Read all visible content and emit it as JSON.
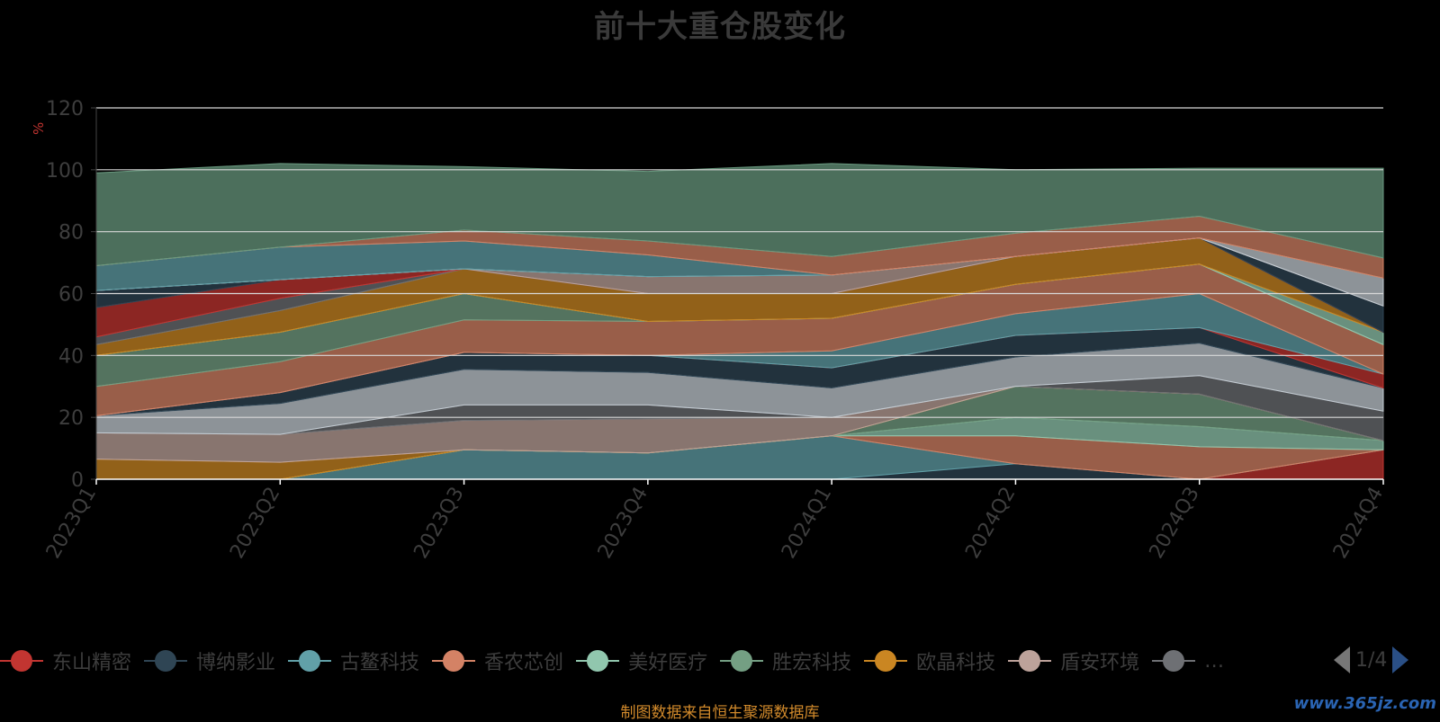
{
  "chart_data": {
    "type": "area",
    "stacked": true,
    "title": "前十大重仓股变化",
    "ylabel": "%",
    "ylim": [
      0,
      120
    ],
    "yticks": [
      0,
      20,
      40,
      60,
      80,
      100,
      120
    ],
    "grid": true,
    "legend_position": "bottom",
    "x": [
      "2023Q1",
      "2023Q2",
      "2023Q3",
      "2023Q4",
      "2024Q1",
      "2024Q2",
      "2024Q3",
      "2024Q4"
    ],
    "series": [
      {
        "color": "#c23531",
        "values": [
          0,
          0,
          0,
          0,
          0,
          0,
          0,
          9.5
        ]
      },
      {
        "color": "#2f4554",
        "values": [
          0,
          0,
          0,
          0,
          0,
          5,
          0,
          0
        ]
      },
      {
        "color": "#61a0a8",
        "values": [
          0,
          0,
          9.5,
          8.5,
          14,
          0,
          0,
          0
        ]
      },
      {
        "color": "#d48265",
        "values": [
          0,
          0,
          0,
          0,
          0,
          9,
          10.5,
          0
        ]
      },
      {
        "color": "#91c7ae",
        "values": [
          0,
          0,
          0,
          0,
          0,
          6,
          6.5,
          3
        ]
      },
      {
        "color": "#749f83",
        "values": [
          0,
          0,
          0,
          0,
          0,
          10,
          10.5,
          0
        ]
      },
      {
        "color": "#ca8622",
        "values": [
          6.5,
          5.5,
          0,
          0,
          0,
          0,
          0,
          0
        ]
      },
      {
        "color": "#bda29a",
        "values": [
          8.5,
          9,
          9.5,
          11,
          6,
          0,
          0,
          0
        ]
      },
      {
        "color": "#6e7074",
        "values": [
          0,
          0,
          5,
          4.5,
          0,
          0,
          6,
          9.5
        ]
      },
      {
        "color": "#c4ccd3",
        "values": [
          5.5,
          10,
          11.5,
          10.5,
          9.5,
          9.5,
          10.5,
          7.5
        ]
      },
      {
        "color": "#2f4554",
        "values": [
          0,
          3.5,
          5.5,
          5.5,
          6.5,
          7,
          5,
          0
        ]
      },
      {
        "color": "#c23531",
        "values": [
          0,
          0,
          0,
          0,
          0,
          0,
          0,
          4.5
        ]
      },
      {
        "color": "#61a0a8",
        "values": [
          0,
          0,
          0,
          0,
          5.5,
          7,
          11,
          0
        ]
      },
      {
        "color": "#d48265",
        "values": [
          9.5,
          10,
          10.5,
          11,
          10.5,
          9.5,
          9.5,
          9.5
        ]
      },
      {
        "color": "#749f83",
        "values": [
          10,
          9.5,
          8.5,
          0,
          0,
          0,
          0,
          0
        ]
      },
      {
        "color": "#91c7ae",
        "values": [
          0,
          0,
          0,
          0,
          0,
          0,
          0,
          4
        ]
      },
      {
        "color": "#ca8622",
        "values": [
          3.5,
          7,
          8,
          9,
          8,
          9,
          8.5,
          0
        ]
      },
      {
        "color": "#6e7074",
        "values": [
          2.5,
          4,
          0,
          0,
          0,
          0,
          0,
          0
        ]
      },
      {
        "color": "#c23531",
        "values": [
          9.5,
          6,
          0,
          0,
          0,
          0,
          0,
          0
        ]
      },
      {
        "color": "#2f4554",
        "values": [
          5.5,
          0,
          0,
          0,
          0,
          0,
          0,
          8.5
        ]
      },
      {
        "color": "#bda29a",
        "values": [
          0,
          0,
          0,
          5.5,
          6,
          0,
          0,
          0
        ]
      },
      {
        "color": "#c4ccd3",
        "values": [
          0,
          0,
          0,
          0,
          0,
          0,
          0,
          9
        ]
      },
      {
        "color": "#61a0a8",
        "values": [
          8,
          10.5,
          9,
          7,
          0,
          0,
          0,
          0
        ]
      },
      {
        "color": "#d48265",
        "values": [
          0,
          0,
          3.5,
          4.5,
          6,
          7.5,
          7,
          6.5
        ]
      },
      {
        "color": "#6a9a80",
        "values": [
          30,
          27,
          20.5,
          22.5,
          30,
          20.5,
          15.5,
          29
        ]
      }
    ]
  },
  "legend": {
    "items": [
      {
        "label": "东山精密",
        "color": "#c23531"
      },
      {
        "label": "博纳影业",
        "color": "#2f4554"
      },
      {
        "label": "古鳌科技",
        "color": "#61a0a8"
      },
      {
        "label": "香农芯创",
        "color": "#d48265"
      },
      {
        "label": "美好医疗",
        "color": "#91c7ae"
      },
      {
        "label": "胜宏科技",
        "color": "#749f83"
      },
      {
        "label": "欧晶科技",
        "color": "#ca8622"
      },
      {
        "label": "盾安环境",
        "color": "#bda29a"
      },
      {
        "label": "…",
        "color": "#6e7074"
      }
    ],
    "page": "1/4"
  },
  "source_note": "制图数据来自恒生聚源数据库",
  "watermark": "www.365jz.com"
}
